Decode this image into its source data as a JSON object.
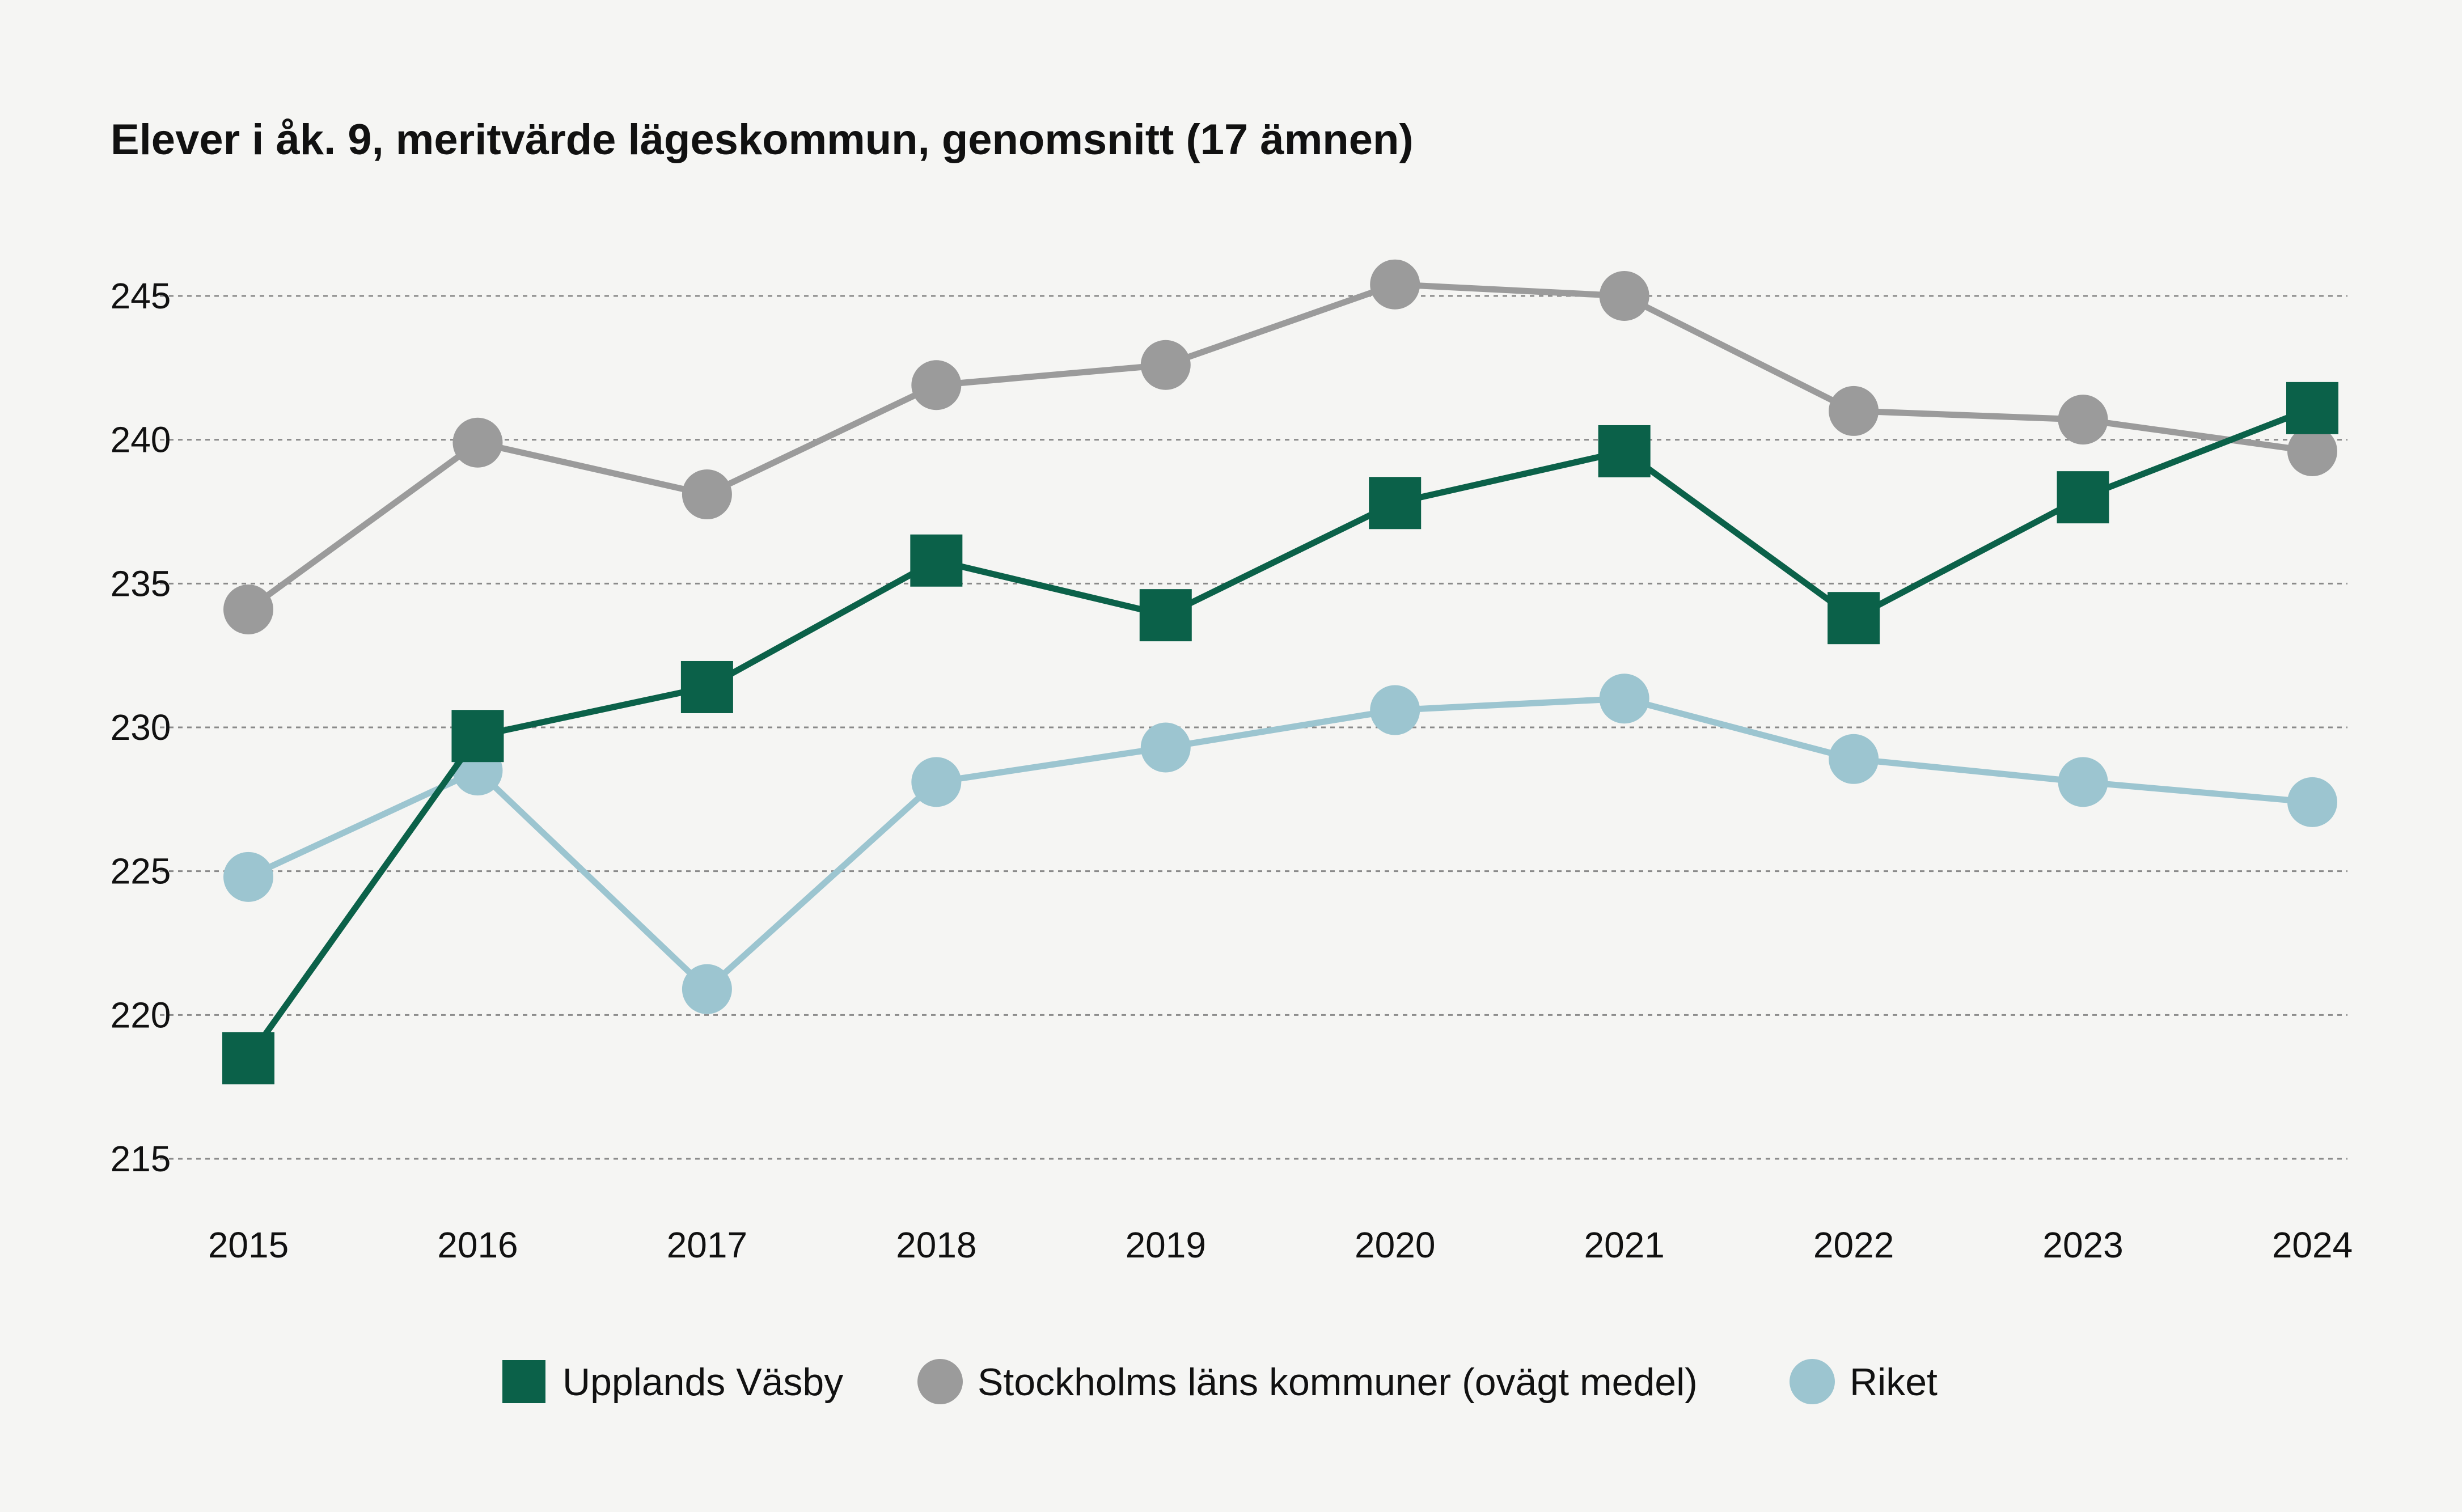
{
  "chart_data": {
    "type": "line",
    "title": "Elever i åk. 9, meritvärde lägeskommun, genomsnitt (17 ämnen)",
    "xlabel": "",
    "ylabel": "",
    "x": [
      "2015",
      "2016",
      "2017",
      "2018",
      "2019",
      "2020",
      "2021",
      "2022",
      "2023",
      "2024"
    ],
    "ylim": [
      215,
      245
    ],
    "yticks": [
      215,
      220,
      225,
      230,
      235,
      240,
      245
    ],
    "grid": true,
    "legend_position": "bottom",
    "series": [
      {
        "name": "Upplands Väsby",
        "marker": "square",
        "color": "#0b6149",
        "values": [
          218.5,
          229.7,
          231.4,
          235.8,
          233.9,
          237.8,
          239.6,
          233.8,
          238.0,
          241.1
        ]
      },
      {
        "name": "Stockholms läns kommuner (ovägt medel)",
        "marker": "circle",
        "color": "#9b9b9b",
        "values": [
          234.1,
          239.9,
          238.1,
          241.9,
          242.6,
          245.4,
          245.0,
          241.0,
          240.7,
          239.6
        ]
      },
      {
        "name": "Riket",
        "marker": "circle",
        "color": "#9cc5d0",
        "values": [
          224.8,
          228.5,
          220.9,
          228.1,
          229.3,
          230.6,
          231.0,
          228.9,
          228.1,
          227.4
        ]
      }
    ]
  }
}
